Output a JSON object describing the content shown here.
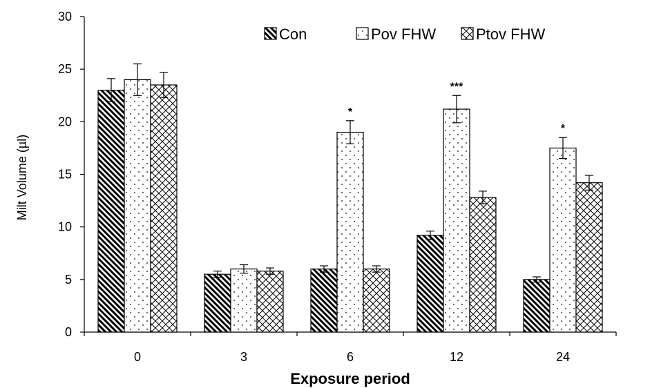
{
  "chart_data": {
    "type": "bar",
    "title": "",
    "xlabel": "Exposure period",
    "ylabel": "Milt Volume (µl)",
    "ylim": [
      0,
      30
    ],
    "yticks": [
      0,
      5,
      10,
      15,
      20,
      25,
      30
    ],
    "categories": [
      "0",
      "3",
      "6",
      "12",
      "24"
    ],
    "legend_position": "top",
    "grid": false,
    "series": [
      {
        "name": "Con",
        "pattern": "diagonal-hatch",
        "values": [
          23.0,
          5.5,
          6.0,
          9.2,
          5.0
        ],
        "errors": [
          1.1,
          0.3,
          0.3,
          0.4,
          0.25
        ]
      },
      {
        "name": "Pov FHW",
        "pattern": "dots",
        "values": [
          24.0,
          6.0,
          19.0,
          21.2,
          17.5
        ],
        "errors": [
          1.5,
          0.4,
          1.1,
          1.3,
          1.0
        ]
      },
      {
        "name": "Ptov FHW",
        "pattern": "crosshatch",
        "values": [
          23.5,
          5.8,
          6.0,
          12.8,
          14.2
        ],
        "errors": [
          1.2,
          0.3,
          0.3,
          0.6,
          0.7
        ]
      }
    ],
    "annotations": [
      {
        "category": "6",
        "series": "Pov FHW",
        "text": "*"
      },
      {
        "category": "12",
        "series": "Pov FHW",
        "text": "***"
      },
      {
        "category": "24",
        "series": "Pov FHW",
        "text": "*"
      }
    ]
  }
}
